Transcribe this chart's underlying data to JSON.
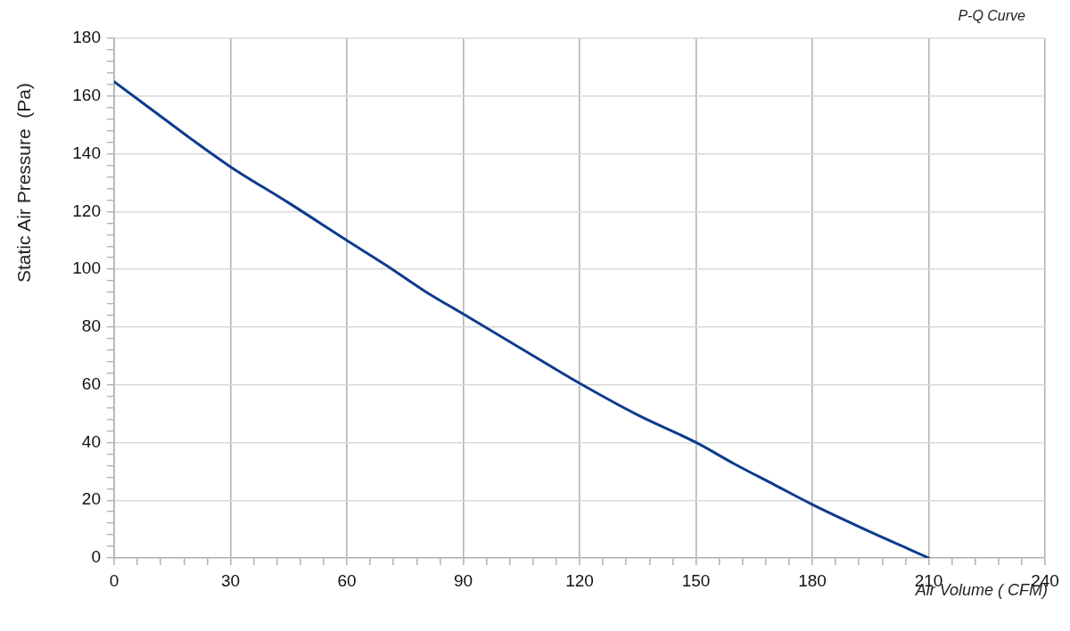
{
  "chart_data": {
    "type": "line",
    "title": "P-Q Curve",
    "xlabel": "Air Volume ( CFM)",
    "ylabel": "Static Air Pressure  (Pa)",
    "x": [
      0,
      10,
      20,
      30,
      45,
      60,
      70,
      80,
      90,
      105,
      120,
      135,
      150,
      160,
      170,
      180,
      195,
      205,
      210
    ],
    "series": [
      {
        "color": "#0d3b8e",
        "values": [
          165,
          155,
          145,
          135.5,
          123,
          110,
          101.5,
          92.5,
          84.5,
          72.5,
          60.5,
          49.5,
          40,
          32.5,
          25.5,
          18.5,
          9,
          3,
          0
        ]
      }
    ],
    "xlim": [
      0,
      240
    ],
    "ylim": [
      0,
      180
    ],
    "xticks": [
      0,
      {
        "value": 6,
        "label": null
      },
      {
        "value": 12,
        "label": null
      },
      {
        "value": 18,
        "label": null
      },
      {
        "value": 24,
        "label": null
      },
      30,
      {
        "value": 36,
        "label": null
      },
      {
        "value": 42,
        "label": null
      },
      {
        "value": 48,
        "label": null
      },
      {
        "value": 54,
        "label": null
      },
      60,
      {
        "value": 66,
        "label": null
      },
      {
        "value": 72,
        "label": null
      },
      {
        "value": 78,
        "label": null
      },
      {
        "value": 84,
        "label": null
      },
      90,
      {
        "value": 96,
        "label": null
      },
      {
        "value": 102,
        "label": null
      },
      {
        "value": 108,
        "label": null
      },
      {
        "value": 114,
        "label": null
      },
      120,
      {
        "value": 126,
        "label": null
      },
      {
        "value": 132,
        "label": null
      },
      {
        "value": 138,
        "label": null
      },
      {
        "value": 144,
        "label": null
      },
      150,
      {
        "value": 156,
        "label": null
      },
      {
        "value": 162,
        "label": null
      },
      {
        "value": 168,
        "label": null
      },
      {
        "value": 174,
        "label": null
      },
      180,
      {
        "value": 186,
        "label": null
      },
      {
        "value": 192,
        "label": null
      },
      {
        "value": 198,
        "label": null
      },
      {
        "value": 204,
        "label": null
      },
      210,
      {
        "value": 216,
        "label": null
      },
      {
        "value": 222,
        "label": null
      },
      {
        "value": 228,
        "label": null
      },
      {
        "value": 234,
        "label": null
      },
      240
    ],
    "yticks": [
      0,
      {
        "value": 4,
        "label": null
      },
      {
        "value": 8,
        "label": null
      },
      {
        "value": 12,
        "label": null
      },
      {
        "value": 16,
        "label": null
      },
      20,
      {
        "value": 24,
        "label": null
      },
      {
        "value": 28,
        "label": null
      },
      {
        "value": 32,
        "label": null
      },
      {
        "value": 36,
        "label": null
      },
      40,
      {
        "value": 44,
        "label": null
      },
      {
        "value": 48,
        "label": null
      },
      {
        "value": 52,
        "label": null
      },
      {
        "value": 56,
        "label": null
      },
      60,
      {
        "value": 64,
        "label": null
      },
      {
        "value": 68,
        "label": null
      },
      {
        "value": 72,
        "label": null
      },
      {
        "value": 76,
        "label": null
      },
      80,
      {
        "value": 84,
        "label": null
      },
      {
        "value": 88,
        "label": null
      },
      {
        "value": 92,
        "label": null
      },
      {
        "value": 96,
        "label": null
      },
      100,
      {
        "value": 104,
        "label": null
      },
      {
        "value": 108,
        "label": null
      },
      {
        "value": 112,
        "label": null
      },
      {
        "value": 116,
        "label": null
      },
      120,
      {
        "value": 124,
        "label": null
      },
      {
        "value": 128,
        "label": null
      },
      {
        "value": 132,
        "label": null
      },
      {
        "value": 136,
        "label": null
      },
      140,
      {
        "value": 144,
        "label": null
      },
      {
        "value": 148,
        "label": null
      },
      {
        "value": 152,
        "label": null
      },
      {
        "value": 156,
        "label": null
      },
      160,
      {
        "value": 164,
        "label": null
      },
      {
        "value": 168,
        "label": null
      },
      {
        "value": 172,
        "label": null
      },
      {
        "value": 176,
        "label": null
      },
      180
    ],
    "grid": true,
    "marker": "none",
    "line_style": "solid"
  }
}
